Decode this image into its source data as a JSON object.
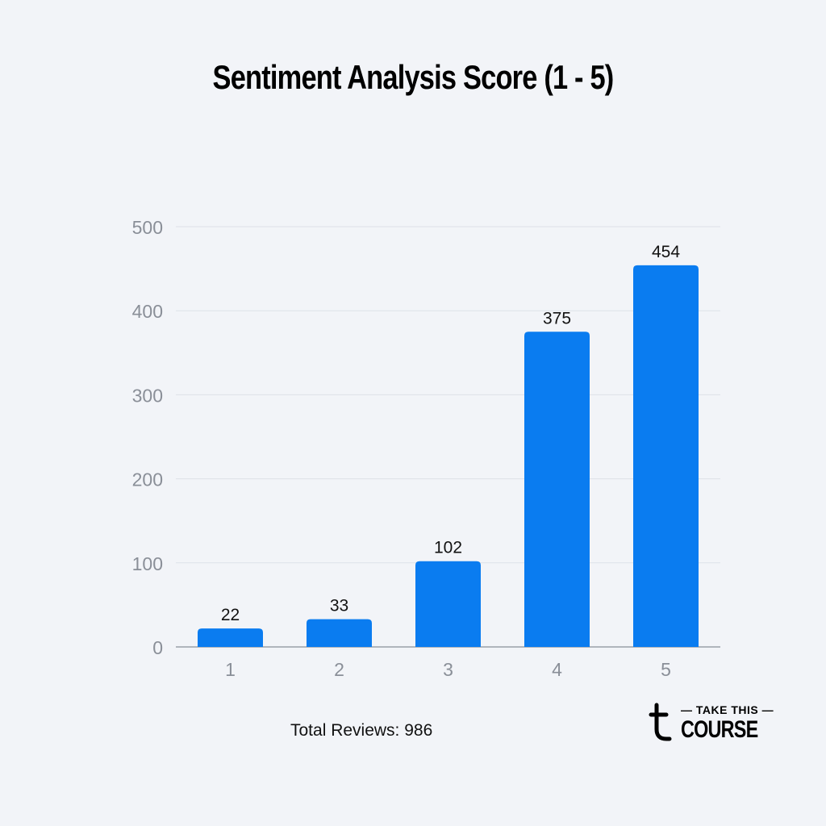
{
  "chart_data": {
    "type": "bar",
    "title": "Sentiment Analysis Score (1 - 5)",
    "categories": [
      "1",
      "2",
      "3",
      "4",
      "5"
    ],
    "values": [
      22,
      33,
      102,
      375,
      454
    ],
    "ylim": [
      0,
      500
    ],
    "yticks": [
      0,
      100,
      200,
      300,
      400,
      500
    ],
    "xlabel": "",
    "ylabel": "",
    "grid": true,
    "data_labels": true,
    "bar_color": "#0a7cf0"
  },
  "footer": {
    "total_reviews": "Total Reviews: 986"
  },
  "logo": {
    "line1": "TAKE THIS",
    "line2": "COURSE"
  }
}
